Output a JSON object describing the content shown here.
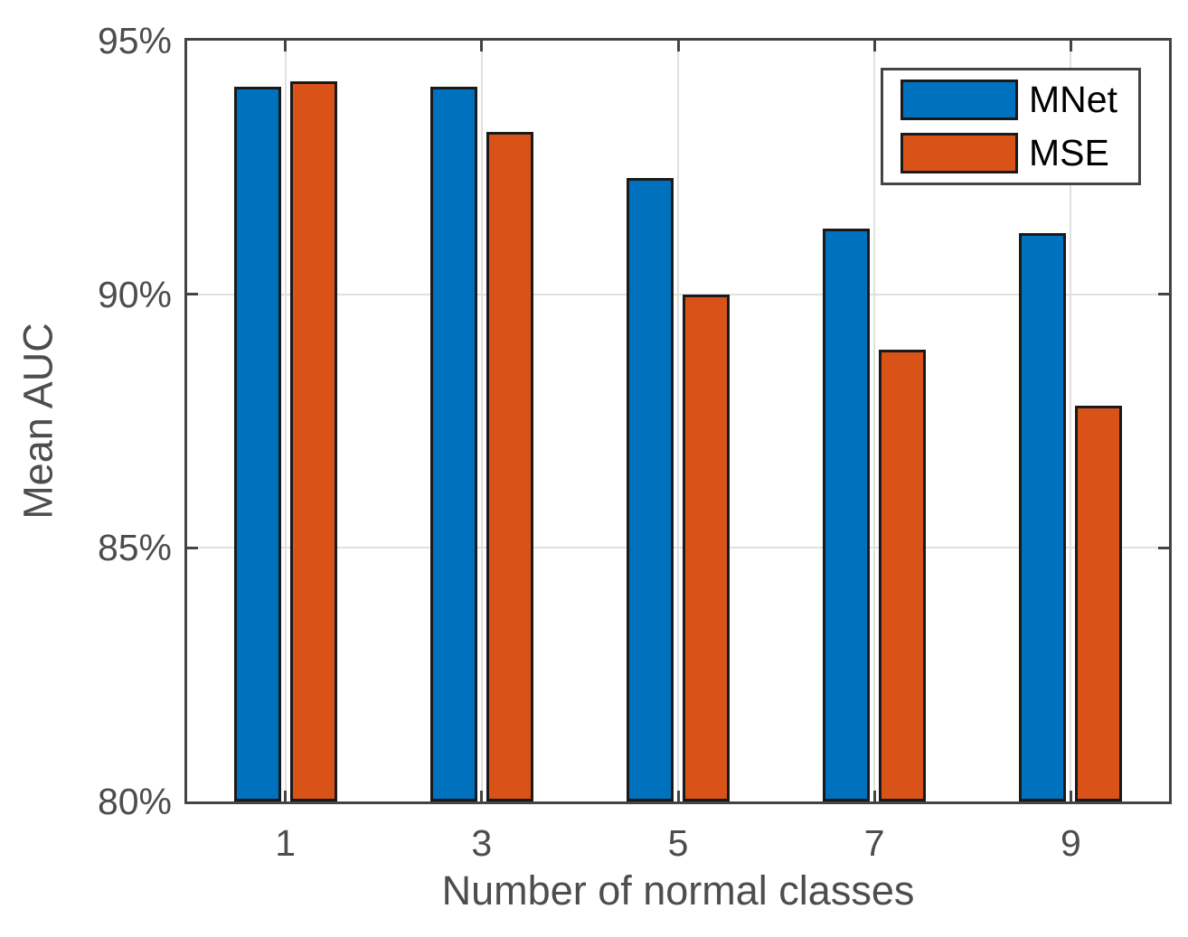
{
  "chart_data": {
    "type": "bar",
    "xlabel": "Number of normal classes",
    "ylabel": "Mean AUC",
    "categories": [
      "1",
      "3",
      "5",
      "7",
      "9"
    ],
    "series": [
      {
        "name": "MNet",
        "color": "#0072BD",
        "values": [
          94.1,
          94.1,
          92.3,
          91.3,
          91.2
        ]
      },
      {
        "name": "MSE",
        "color": "#D95319",
        "values": [
          94.2,
          93.2,
          90.0,
          88.9,
          87.8
        ]
      }
    ],
    "ylim": [
      80,
      95
    ],
    "yticks": [
      80,
      85,
      90,
      95
    ],
    "ytick_labels": [
      "80%",
      "85%",
      "90%",
      "95%"
    ],
    "grid": true,
    "legend_position": "top-right",
    "legend_labels": [
      "MNet",
      "MSE"
    ],
    "axis_color": "#444444",
    "grid_color": "#e0e0e0",
    "bar_edge_color": "#1a1a1a",
    "tick_text_color": "#4d4d4d"
  }
}
